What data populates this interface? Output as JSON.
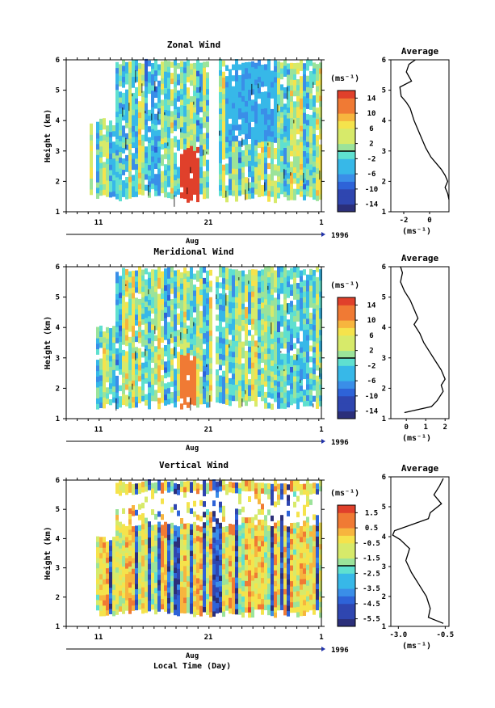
{
  "chart_data": [
    {
      "type": "heatmap",
      "title": "Zonal Wind",
      "ylabel": "Height (km)",
      "xlabel": "",
      "yticks": [
        "1",
        "2",
        "3",
        "4",
        "5",
        "6"
      ],
      "ylim": [
        1,
        6
      ],
      "xticks": [
        "11",
        "21",
        "1"
      ],
      "month_label": "Aug",
      "year_label": "1996",
      "colorbar": {
        "unit": "(ms⁻¹)",
        "ticks": [
          "14",
          "10",
          "6",
          "2",
          "-2",
          "-6",
          "-10",
          "-14"
        ],
        "range": [
          -16,
          16
        ]
      },
      "average": {
        "title": "Average",
        "xlabel": "(ms⁻¹)",
        "xticks": [
          "-2",
          "0"
        ],
        "xlim": [
          -3,
          1.5
        ],
        "profile": [
          [
            -1.1,
            6.0
          ],
          [
            -1.6,
            5.85
          ],
          [
            -1.8,
            5.6
          ],
          [
            -1.4,
            5.3
          ],
          [
            -2.3,
            5.1
          ],
          [
            -2.2,
            4.8
          ],
          [
            -1.8,
            4.6
          ],
          [
            -1.5,
            4.4
          ],
          [
            -1.2,
            4.0
          ],
          [
            -0.9,
            3.7
          ],
          [
            -0.6,
            3.4
          ],
          [
            -0.3,
            3.1
          ],
          [
            0.1,
            2.8
          ],
          [
            0.5,
            2.6
          ],
          [
            0.9,
            2.4
          ],
          [
            1.2,
            2.2
          ],
          [
            1.4,
            2.0
          ],
          [
            1.2,
            1.8
          ],
          [
            1.4,
            1.6
          ],
          [
            1.5,
            1.4
          ]
        ]
      }
    },
    {
      "type": "heatmap",
      "title": "Meridional Wind",
      "ylabel": "Height (km)",
      "xlabel": "",
      "yticks": [
        "1",
        "2",
        "3",
        "4",
        "5",
        "6"
      ],
      "ylim": [
        1,
        6
      ],
      "xticks": [
        "11",
        "21",
        "1"
      ],
      "month_label": "Aug",
      "year_label": "1996",
      "colorbar": {
        "unit": "(ms⁻¹)",
        "ticks": [
          "14",
          "10",
          "6",
          "2",
          "-2",
          "-6",
          "-10",
          "-14"
        ],
        "range": [
          -16,
          16
        ]
      },
      "average": {
        "title": "Average",
        "xlabel": "(ms⁻¹)",
        "xticks": [
          "0",
          "1",
          "2"
        ],
        "xlim": [
          -0.8,
          2.2
        ],
        "profile": [
          [
            -0.3,
            6.0
          ],
          [
            -0.2,
            5.8
          ],
          [
            -0.3,
            5.5
          ],
          [
            -0.1,
            5.2
          ],
          [
            0.2,
            4.9
          ],
          [
            0.4,
            4.6
          ],
          [
            0.6,
            4.3
          ],
          [
            0.4,
            4.1
          ],
          [
            0.7,
            3.8
          ],
          [
            0.9,
            3.5
          ],
          [
            1.2,
            3.2
          ],
          [
            1.5,
            2.9
          ],
          [
            1.8,
            2.6
          ],
          [
            2.0,
            2.3
          ],
          [
            1.8,
            2.1
          ],
          [
            1.9,
            1.9
          ],
          [
            1.6,
            1.6
          ],
          [
            1.3,
            1.4
          ],
          [
            -0.1,
            1.2
          ]
        ]
      }
    },
    {
      "type": "heatmap",
      "title": "Vertical Wind",
      "ylabel": "Height (km)",
      "xlabel": "Local Time (Day)",
      "yticks": [
        "1",
        "2",
        "3",
        "4",
        "5",
        "6"
      ],
      "ylim": [
        1,
        6
      ],
      "xticks": [
        "11",
        "21",
        "1"
      ],
      "month_label": "Aug",
      "year_label": "1996",
      "colorbar": {
        "unit": "(ms⁻¹)",
        "ticks": [
          "1.5",
          "0.5",
          "-0.5",
          "-1.5",
          "-2.5",
          "-3.5",
          "-4.5",
          "-5.5"
        ],
        "range": [
          -6.0,
          2.0
        ]
      },
      "average": {
        "title": "Average",
        "xlabel": "(ms⁻¹)",
        "xticks": [
          "-3.0",
          "-0.5"
        ],
        "xlim": [
          -3.4,
          -0.3
        ],
        "profile": [
          [
            -0.6,
            5.95
          ],
          [
            -0.8,
            5.7
          ],
          [
            -1.1,
            5.4
          ],
          [
            -0.7,
            5.1
          ],
          [
            -1.3,
            4.8
          ],
          [
            -1.4,
            4.6
          ],
          [
            -2.3,
            4.4
          ],
          [
            -3.2,
            4.2
          ],
          [
            -3.3,
            4.05
          ],
          [
            -2.9,
            3.9
          ],
          [
            -2.4,
            3.6
          ],
          [
            -2.6,
            3.2
          ],
          [
            -2.3,
            2.8
          ],
          [
            -1.9,
            2.4
          ],
          [
            -1.5,
            2.0
          ],
          [
            -1.3,
            1.6
          ],
          [
            -1.4,
            1.3
          ],
          [
            -0.6,
            1.1
          ]
        ]
      }
    }
  ]
}
